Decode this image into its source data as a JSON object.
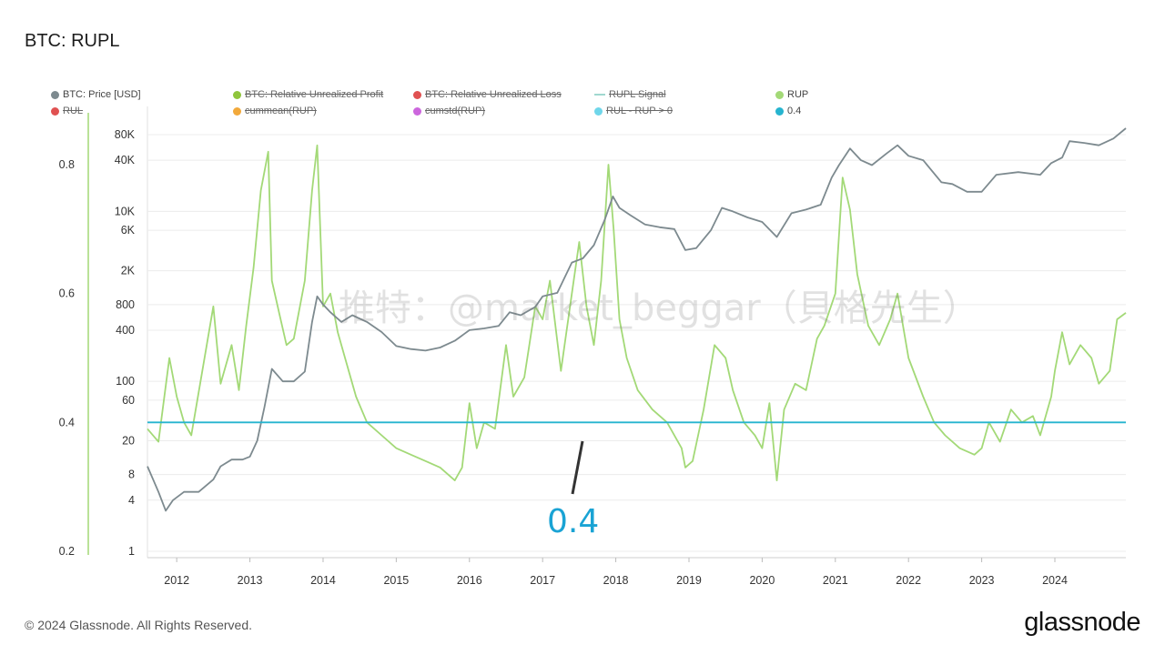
{
  "title": "BTC: RUPL",
  "legend": [
    {
      "label": "BTC: Price [USD]",
      "color": "#7d8a8f",
      "marker": "dot",
      "active": true
    },
    {
      "label": "BTC: Relative Unrealized Profit",
      "color": "#8fc53c",
      "marker": "dot",
      "active": false
    },
    {
      "label": "BTC: Relative Unrealized Loss",
      "color": "#e05151",
      "marker": "dot",
      "active": false
    },
    {
      "label": "RUPL Signal",
      "color": "#a0d8d0",
      "marker": "line",
      "active": false
    },
    {
      "label": "RUP",
      "color": "#a3d977",
      "marker": "dot",
      "active": true
    },
    {
      "label": "RUL",
      "color": "#e05151",
      "marker": "dot",
      "active": false
    },
    {
      "label": "cummean(RUP)",
      "color": "#f2a93b",
      "marker": "dot",
      "active": false
    },
    {
      "label": "cumstd(RUP)",
      "color": "#cc66dd",
      "marker": "dot",
      "active": false
    },
    {
      "label": "RUL - RUP > 0",
      "color": "#6fd6ea",
      "marker": "dot",
      "active": false
    },
    {
      "label": "0.4",
      "color": "#26b4cf",
      "marker": "dot",
      "active": true
    }
  ],
  "footer": "© 2024 Glassnode. All Rights Reserved.",
  "brand": "glassnode",
  "watermark": "推特：@market_beggar（貝格先生）",
  "annotation": "0.4",
  "chart_data": {
    "type": "line",
    "x_ticks": [
      "2012",
      "2013",
      "2014",
      "2015",
      "2016",
      "2017",
      "2018",
      "2019",
      "2020",
      "2021",
      "2022",
      "2023",
      "2024"
    ],
    "left_axis": {
      "ticks": [
        "0.2",
        "0.4",
        "0.6",
        "0.8"
      ],
      "range": [
        0.2,
        0.8
      ]
    },
    "right_axis": {
      "scale": "log",
      "ticks": [
        "1",
        "4",
        "8",
        "20",
        "60",
        "100",
        "400",
        "800",
        "2K",
        "6K",
        "10K",
        "40K",
        "80K"
      ]
    },
    "series": [
      {
        "name": "RUP",
        "color": "#a3d977",
        "axis": "left",
        "x": [
          2011.6,
          2011.75,
          2011.9,
          2012.0,
          2012.1,
          2012.2,
          2012.35,
          2012.5,
          2012.6,
          2012.75,
          2012.85,
          2012.95,
          2013.05,
          2013.15,
          2013.25,
          2013.3,
          2013.4,
          2013.5,
          2013.6,
          2013.75,
          2013.85,
          2013.92,
          2014.0,
          2014.1,
          2014.2,
          2014.3,
          2014.45,
          2014.6,
          2014.8,
          2015.0,
          2015.2,
          2015.4,
          2015.6,
          2015.8,
          2015.9,
          2016.0,
          2016.1,
          2016.2,
          2016.35,
          2016.5,
          2016.6,
          2016.75,
          2016.9,
          2017.0,
          2017.1,
          2017.25,
          2017.4,
          2017.5,
          2017.6,
          2017.7,
          2017.8,
          2017.9,
          2017.97,
          2018.05,
          2018.15,
          2018.3,
          2018.5,
          2018.7,
          2018.9,
          2018.95,
          2019.05,
          2019.2,
          2019.35,
          2019.5,
          2019.6,
          2019.75,
          2019.9,
          2020.0,
          2020.1,
          2020.2,
          2020.3,
          2020.45,
          2020.6,
          2020.75,
          2020.85,
          2021.0,
          2021.1,
          2021.2,
          2021.3,
          2021.45,
          2021.6,
          2021.75,
          2021.85,
          2022.0,
          2022.2,
          2022.35,
          2022.5,
          2022.7,
          2022.9,
          2023.0,
          2023.1,
          2023.25,
          2023.4,
          2023.55,
          2023.7,
          2023.8,
          2023.95,
          2024.0,
          2024.1,
          2024.2,
          2024.35,
          2024.5,
          2024.6,
          2024.75,
          2024.85,
          2024.97
        ],
        "y": [
          0.39,
          0.37,
          0.5,
          0.44,
          0.4,
          0.38,
          0.48,
          0.58,
          0.46,
          0.52,
          0.45,
          0.55,
          0.64,
          0.76,
          0.82,
          0.62,
          0.57,
          0.52,
          0.53,
          0.62,
          0.76,
          0.83,
          0.58,
          0.6,
          0.54,
          0.5,
          0.44,
          0.4,
          0.38,
          0.36,
          0.35,
          0.34,
          0.33,
          0.31,
          0.33,
          0.43,
          0.36,
          0.4,
          0.39,
          0.52,
          0.44,
          0.47,
          0.58,
          0.56,
          0.62,
          0.48,
          0.6,
          0.68,
          0.58,
          0.52,
          0.62,
          0.8,
          0.7,
          0.56,
          0.5,
          0.45,
          0.42,
          0.4,
          0.36,
          0.33,
          0.34,
          0.42,
          0.52,
          0.5,
          0.45,
          0.4,
          0.38,
          0.36,
          0.43,
          0.31,
          0.42,
          0.46,
          0.45,
          0.53,
          0.55,
          0.6,
          0.78,
          0.73,
          0.63,
          0.55,
          0.52,
          0.56,
          0.6,
          0.5,
          0.44,
          0.4,
          0.38,
          0.36,
          0.35,
          0.36,
          0.4,
          0.37,
          0.42,
          0.4,
          0.41,
          0.38,
          0.44,
          0.48,
          0.54,
          0.49,
          0.52,
          0.5,
          0.46,
          0.48,
          0.56,
          0.57
        ]
      },
      {
        "name": "BTC: Price [USD]",
        "color": "#7d8a8f",
        "axis": "right",
        "x": [
          2011.6,
          2011.75,
          2011.85,
          2011.95,
          2012.1,
          2012.3,
          2012.5,
          2012.6,
          2012.75,
          2012.9,
          2013.0,
          2013.1,
          2013.2,
          2013.3,
          2013.45,
          2013.6,
          2013.75,
          2013.85,
          2013.92,
          2014.0,
          2014.1,
          2014.25,
          2014.4,
          2014.6,
          2014.8,
          2015.0,
          2015.2,
          2015.4,
          2015.6,
          2015.8,
          2016.0,
          2016.2,
          2016.4,
          2016.55,
          2016.7,
          2016.9,
          2017.0,
          2017.2,
          2017.4,
          2017.55,
          2017.7,
          2017.85,
          2017.96,
          2018.05,
          2018.2,
          2018.4,
          2018.6,
          2018.8,
          2018.95,
          2019.1,
          2019.3,
          2019.45,
          2019.6,
          2019.8,
          2020.0,
          2020.2,
          2020.4,
          2020.6,
          2020.8,
          2020.95,
          2021.05,
          2021.2,
          2021.35,
          2021.5,
          2021.7,
          2021.85,
          2022.0,
          2022.2,
          2022.45,
          2022.6,
          2022.8,
          2023.0,
          2023.2,
          2023.5,
          2023.8,
          2023.95,
          2024.1,
          2024.2,
          2024.4,
          2024.6,
          2024.8,
          2024.97
        ],
        "y": [
          10,
          5,
          3,
          4,
          5,
          5,
          7,
          10,
          12,
          12,
          13,
          20,
          50,
          140,
          100,
          100,
          130,
          500,
          1000,
          800,
          650,
          500,
          600,
          500,
          380,
          260,
          240,
          230,
          250,
          300,
          400,
          420,
          450,
          650,
          600,
          750,
          1000,
          1100,
          2500,
          2800,
          4000,
          8000,
          15000,
          11000,
          9000,
          7000,
          6500,
          6200,
          3500,
          3700,
          6000,
          11000,
          10000,
          8500,
          7500,
          5000,
          9500,
          10500,
          12000,
          25000,
          35000,
          55000,
          40000,
          35000,
          48000,
          60000,
          45000,
          40000,
          22000,
          21000,
          17000,
          17000,
          27000,
          29000,
          27000,
          37000,
          43000,
          67000,
          64000,
          60000,
          72000,
          95000
        ]
      },
      {
        "name": "0.4",
        "color": "#26b4cf",
        "axis": "left",
        "x": [
          2011.6,
          2024.97
        ],
        "y": [
          0.4,
          0.4
        ]
      }
    ]
  }
}
